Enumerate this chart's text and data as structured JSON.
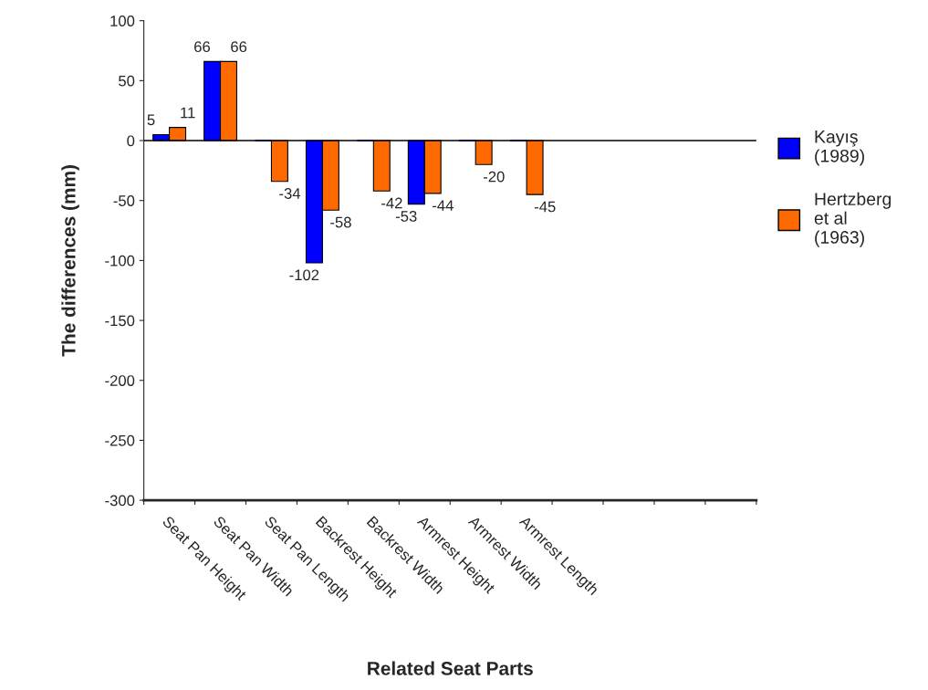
{
  "chart_data": {
    "type": "bar",
    "xlabel": "Related Seat Parts",
    "ylabel": "The differences (mm)",
    "categories": [
      "Seat Pan Height",
      "Seat Pan Width",
      "Seat Pan Length",
      "Backrest Height",
      "Backrest Width",
      "Armrest Height",
      "Armrest Width",
      "Armrest Length",
      null,
      null,
      null,
      null
    ],
    "series": [
      {
        "name": "Kayış\n(1989)",
        "color": "#0000ff",
        "values": [
          5,
          66,
          0,
          -102,
          0,
          -53,
          0,
          0,
          null,
          null,
          null,
          null
        ],
        "value_labels": [
          "5",
          "66",
          null,
          "-102",
          null,
          "-53",
          null,
          null,
          null,
          null,
          null,
          null
        ]
      },
      {
        "name": "Hertzberg\net al\n(1963)",
        "color": "#ff6a00",
        "values": [
          11,
          66,
          -34,
          -58,
          -42,
          -44,
          -20,
          -45,
          null,
          null,
          null,
          null
        ],
        "value_labels": [
          "11",
          "66",
          "-34",
          "-58",
          "-42",
          "-44",
          "-20",
          "-45",
          null,
          null,
          null,
          null
        ]
      }
    ],
    "ylim": [
      -300,
      100
    ],
    "yticks": [
      -300,
      -250,
      -200,
      -150,
      -100,
      -50,
      0,
      50,
      100
    ],
    "ref_lines": [
      {
        "axis": "y",
        "value": 0,
        "color": "#000000"
      }
    ],
    "grid": false,
    "legend": "right"
  }
}
